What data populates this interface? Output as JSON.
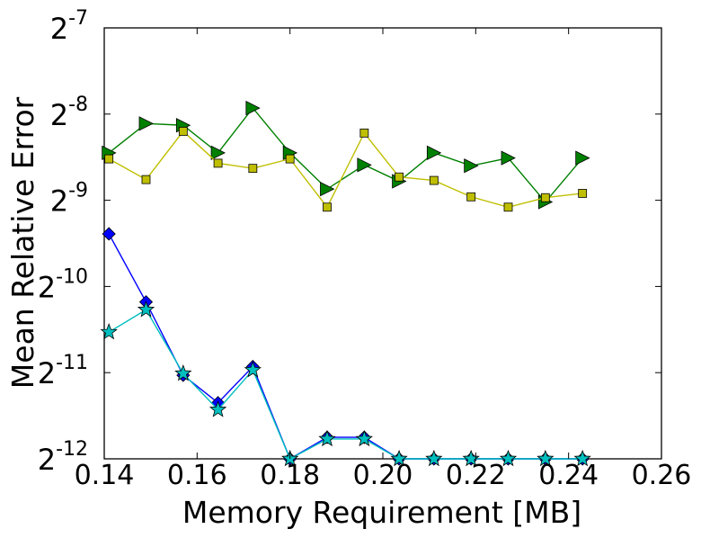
{
  "chart_data": {
    "type": "line",
    "title": "",
    "xlabel": "Memory Requirement [MB]",
    "ylabel": "Mean Relative Error",
    "xlim": [
      0.14,
      0.26
    ],
    "ylim_log2": [
      -12,
      -7
    ],
    "yscale": "log2",
    "grid": false,
    "x_ticks": [
      "0.14",
      "0.16",
      "0.18",
      "0.20",
      "0.22",
      "0.24",
      "0.26"
    ],
    "x_tick_values": [
      0.14,
      0.16,
      0.18,
      0.2,
      0.22,
      0.24,
      0.26
    ],
    "y_tick_exponents": [
      -12,
      -11,
      -10,
      -9,
      -8,
      -7
    ],
    "y_tick_base": "2",
    "y_tick_exps_text": [
      "-12",
      "-11",
      "-10",
      "-9",
      "-8",
      "-7"
    ],
    "series": [
      {
        "color": "#008000",
        "marker": "triangle-right",
        "x": [
          0.141,
          0.149,
          0.157,
          0.1645,
          0.172,
          0.18,
          0.188,
          0.196,
          0.2035,
          0.211,
          0.219,
          0.227,
          0.235,
          0.243
        ],
        "log2_y": [
          -8.45,
          -8.11,
          -8.13,
          -8.45,
          -7.93,
          -8.45,
          -8.87,
          -8.59,
          -8.78,
          -8.45,
          -8.6,
          -8.51,
          -9.02,
          -8.51
        ]
      },
      {
        "color": "#bfbf00",
        "marker": "square",
        "x": [
          0.141,
          0.149,
          0.157,
          0.1645,
          0.172,
          0.18,
          0.188,
          0.196,
          0.2035,
          0.211,
          0.219,
          0.227,
          0.235,
          0.243
        ],
        "log2_y": [
          -8.52,
          -8.76,
          -8.2,
          -8.57,
          -8.63,
          -8.52,
          -9.08,
          -8.22,
          -8.73,
          -8.77,
          -8.96,
          -9.08,
          -8.97,
          -8.92
        ]
      },
      {
        "color": "#0000ff",
        "marker": "diamond",
        "x": [
          0.141,
          0.149,
          0.157,
          0.1645,
          0.172,
          0.18,
          0.188,
          0.196,
          0.2035,
          0.211,
          0.219,
          0.227,
          0.235,
          0.243
        ],
        "log2_y": [
          -9.39,
          -10.18,
          -11.03,
          -11.35,
          -10.93,
          -12.0,
          -11.75,
          -11.75,
          -12.0,
          -12.0,
          -12.0,
          -12.0,
          -12.0,
          -12.0
        ]
      },
      {
        "color": "#00bfbf",
        "marker": "star",
        "x": [
          0.141,
          0.149,
          0.157,
          0.1645,
          0.172,
          0.18,
          0.188,
          0.196,
          0.2035,
          0.211,
          0.219,
          0.227,
          0.235,
          0.243
        ],
        "log2_y": [
          -10.53,
          -10.27,
          -11.01,
          -11.43,
          -10.97,
          -12.0,
          -11.77,
          -11.77,
          -12.0,
          -12.0,
          -12.0,
          -12.0,
          -12.0,
          -12.0
        ]
      }
    ]
  }
}
